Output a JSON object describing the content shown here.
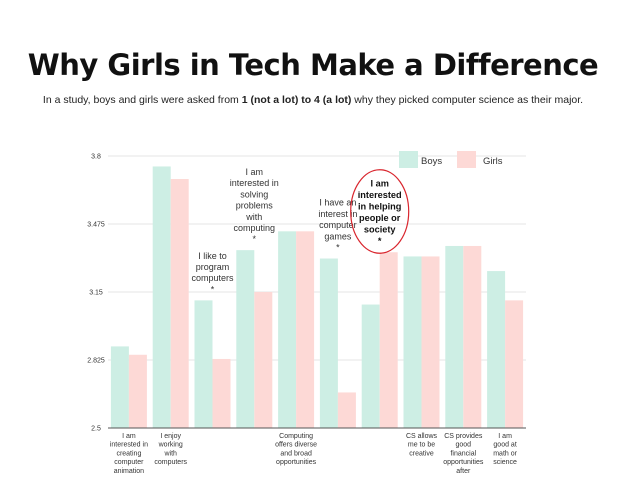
{
  "header": {
    "title": "Why Girls in Tech Make a Difference",
    "subtitle_pre": "In a study, boys and girls were asked from ",
    "subtitle_bold": "1 (not a lot) to 4 (a lot)",
    "subtitle_post": " why they picked computer science as their major."
  },
  "chart_data": {
    "type": "bar",
    "ylim": [
      2.5,
      3.8
    ],
    "yticks": [
      "2.5",
      "2.825",
      "3.15",
      "3.475",
      "3.8"
    ],
    "grid": true,
    "legend_position": "top-right",
    "categories": [
      "I am interested in creating computer animation",
      "I enjoy working with computers",
      "I like to program computers",
      "I am interested in solving problems with computing",
      "Computing offers diverse and broad opportunities",
      "I have an interest in computer games",
      "I am interested in helping people or society",
      "CS allows me to be creative",
      "CS provides good financial opportunities after",
      "I am good at math or science"
    ],
    "category_labels": [
      [
        "I am",
        "interested in",
        "creating",
        "computer",
        "animation"
      ],
      [
        "I enjoy",
        "working",
        "with",
        "computers"
      ],
      [],
      [],
      [
        "Computing",
        "offers diverse",
        "and broad",
        "opportunities"
      ],
      [],
      [],
      [
        "CS allows",
        "me to be",
        "creative"
      ],
      [
        "CS provides",
        "good",
        "financial",
        "opportunities",
        "after"
      ],
      [
        "I am",
        "good at",
        "math or",
        "science"
      ]
    ],
    "annotations": [
      {
        "category_index": 2,
        "lines": [
          "I like to",
          "program",
          "computers",
          "*"
        ],
        "bold": false,
        "circled": false
      },
      {
        "category_index": 3,
        "lines": [
          "I am",
          "interested in",
          "solving",
          "problems",
          "with",
          "computing",
          "*"
        ],
        "bold": false,
        "circled": false
      },
      {
        "category_index": 5,
        "lines": [
          "I have an",
          "interest in",
          "computer",
          "games",
          "*"
        ],
        "bold": false,
        "circled": false
      },
      {
        "category_index": 6,
        "lines": [
          "I am",
          "interested",
          "in helping",
          "people or",
          "society",
          "*"
        ],
        "bold": true,
        "circled": true
      }
    ],
    "series": [
      {
        "name": "Boys",
        "color": "#cdeee4",
        "values": [
          2.89,
          3.75,
          3.11,
          3.35,
          3.44,
          3.31,
          3.09,
          3.32,
          3.37,
          3.25
        ]
      },
      {
        "name": "Girls",
        "color": "#fdd9d6",
        "values": [
          2.85,
          3.69,
          2.83,
          3.15,
          3.44,
          2.67,
          3.34,
          3.32,
          3.37,
          3.11
        ]
      }
    ]
  }
}
